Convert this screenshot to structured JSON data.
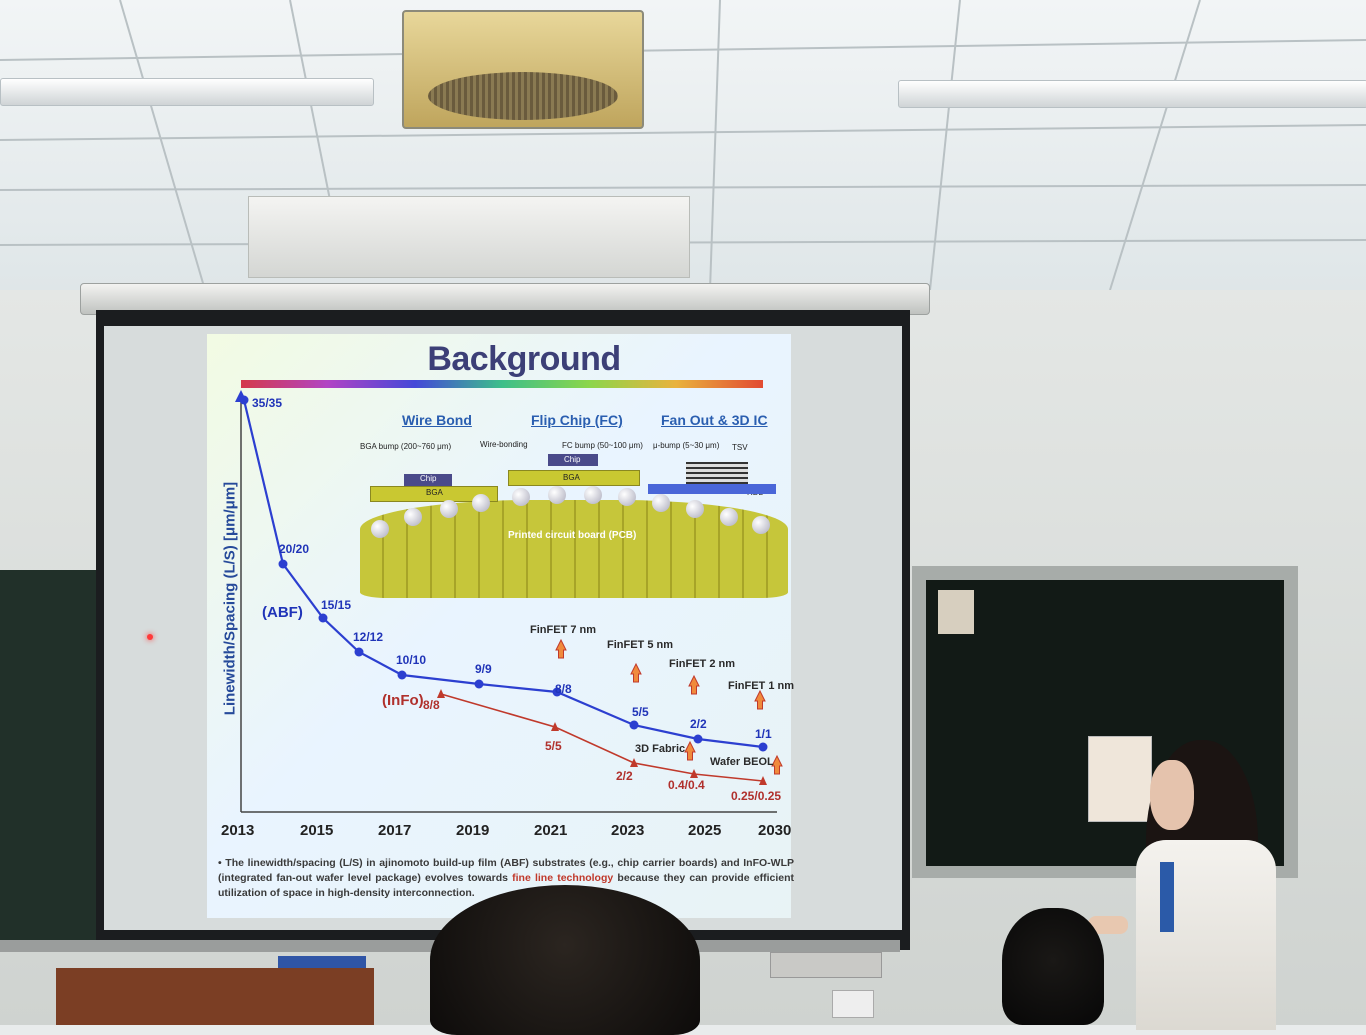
{
  "slide": {
    "title": "Background",
    "columns": [
      "Wire Bond",
      "Flip Chip (FC)",
      "Fan Out & 3D IC"
    ],
    "diagram_labels": {
      "bga_bump": "BGA bump (200~760 μm)",
      "wire_bonding": "Wire-bonding",
      "fc_bump": "FC bump (50~100 μm)",
      "u_bump": "μ-bump (5~30 μm)",
      "tsv": "TSV",
      "rdl": "RDL",
      "chip": "Chip",
      "bga": "BGA",
      "pcb": "Printed circuit board (PCB)"
    },
    "chart_data": {
      "type": "line",
      "ylabel": "Linewidth/Spacing (L/S) [μm/μm]",
      "x_ticks": [
        "2013",
        "2015",
        "2017",
        "2019",
        "2021",
        "2023",
        "2025",
        "2030"
      ],
      "series": [
        {
          "name": "(ABF)",
          "color": "#2c3fd0",
          "points": [
            "35/35",
            "20/20",
            "15/15",
            "12/12",
            "10/10",
            "9/9",
            "8/8",
            "5/5",
            "2/2",
            "1/1"
          ]
        },
        {
          "name": "(InFo)",
          "color": "#c0392b",
          "points": [
            "8/8",
            "5/5",
            "2/2",
            "0.4/0.4",
            "0.25/0.25"
          ]
        }
      ]
    },
    "annotations": [
      "FinFET 7 nm",
      "FinFET 5 nm",
      "FinFET 2 nm",
      "FinFET 1 nm",
      "3D Fabric",
      "Wafer BEOL"
    ],
    "caption_parts": {
      "a": "The linewidth/spacing (L/S) in ajinomoto build-up film (ABF) substrates (e.g., chip carrier boards) and InFO-WLP (integrated fan-out wafer level package) evolves towards ",
      "b": "fine line technology",
      "c": " because they can provide efficient utilization of space in high-density ",
      "d": "interconnection."
    }
  }
}
